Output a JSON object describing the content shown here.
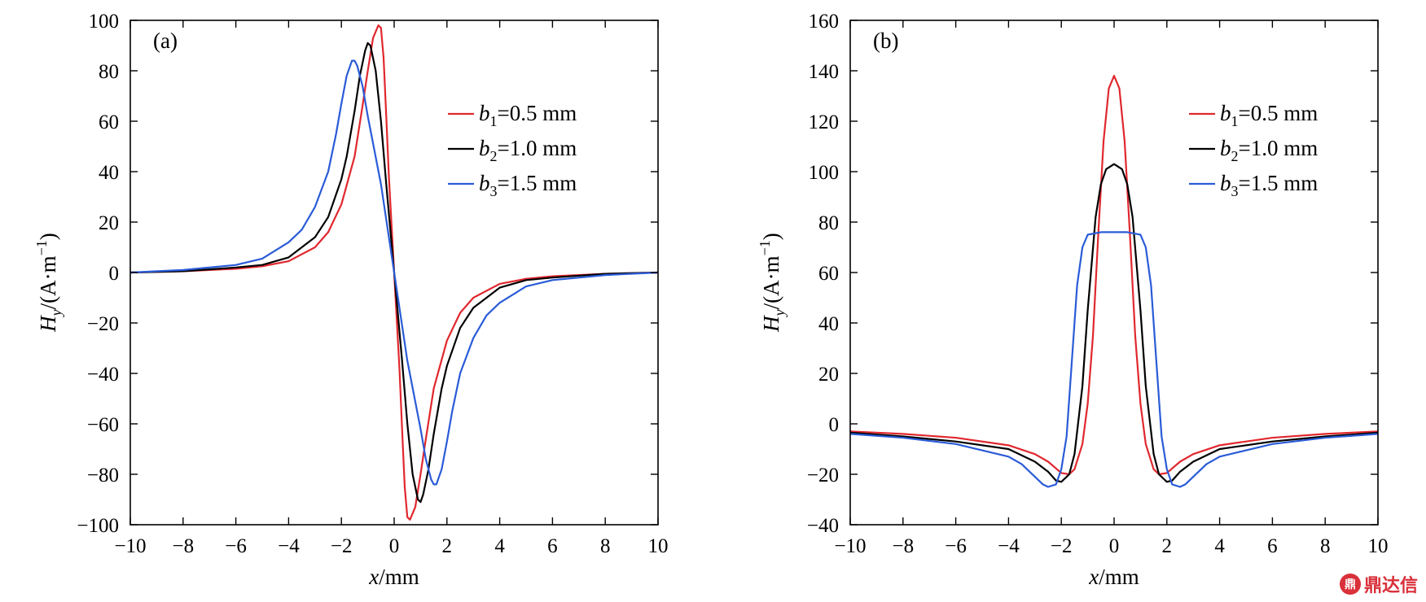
{
  "chart_data": [
    {
      "type": "line",
      "panel_label": "(a)",
      "xlabel_var": "x",
      "xlabel_unit": "/mm",
      "ylabel_var": "H",
      "ylabel_sub": "y",
      "ylabel_unit": "/(A·m",
      "ylabel_exp": "−1",
      "ylabel_close": ")",
      "xlim": [
        -10,
        10
      ],
      "ylim": [
        -100,
        100
      ],
      "xticks": [
        "−10",
        "−8",
        "−6",
        "−4",
        "−2",
        "0",
        "2",
        "4",
        "6",
        "8",
        "10"
      ],
      "yticks": [
        "100",
        "80",
        "60",
        "40",
        "20",
        "0",
        "−20",
        "−40",
        "−60",
        "−80",
        "−100"
      ],
      "legend": "top-right",
      "series": [
        {
          "legend_var": "b",
          "legend_sub": "1",
          "legend_val": "=0.5 mm",
          "color": "#e0282e",
          "x": [
            -10,
            -8,
            -6,
            -5,
            -4,
            -3,
            -2.5,
            -2,
            -1.5,
            -1.2,
            -1,
            -0.8,
            -0.6,
            -0.5,
            -0.4,
            -0.3,
            -0.2,
            0,
            0.2,
            0.3,
            0.4,
            0.5,
            0.6,
            0.8,
            1,
            1.2,
            1.5,
            2,
            2.5,
            3,
            4,
            5,
            6,
            8,
            10
          ],
          "y": [
            0,
            0.5,
            1.5,
            2.5,
            4.5,
            10,
            16,
            27,
            46,
            66,
            80,
            93,
            98,
            97,
            85,
            62,
            38,
            0,
            -38,
            -62,
            -85,
            -97,
            -98,
            -93,
            -80,
            -66,
            -46,
            -27,
            -16,
            -10,
            -4.5,
            -2.5,
            -1.5,
            -0.5,
            0
          ]
        },
        {
          "legend_var": "b",
          "legend_sub": "2",
          "legend_val": "=1.0 mm",
          "color": "#000000",
          "x": [
            -10,
            -8,
            -6,
            -5,
            -4,
            -3,
            -2.5,
            -2,
            -1.8,
            -1.5,
            -1.3,
            -1.1,
            -1,
            -0.9,
            -0.7,
            -0.5,
            -0.3,
            0,
            0.3,
            0.5,
            0.7,
            0.9,
            1,
            1.1,
            1.3,
            1.5,
            1.8,
            2,
            2.5,
            3,
            4,
            5,
            6,
            8,
            10
          ],
          "y": [
            0,
            0.5,
            2,
            3,
            6,
            14,
            22,
            37,
            46,
            64,
            78,
            88,
            91,
            90,
            80,
            60,
            35,
            0,
            -35,
            -60,
            -80,
            -90,
            -91,
            -88,
            -78,
            -64,
            -46,
            -37,
            -22,
            -14,
            -6,
            -3,
            -2,
            -0.5,
            0
          ]
        },
        {
          "legend_var": "b",
          "legend_sub": "3",
          "legend_val": "=1.5 mm",
          "color": "#2a5bd7",
          "x": [
            -10,
            -8,
            -6,
            -5,
            -4,
            -3.5,
            -3,
            -2.5,
            -2.2,
            -2,
            -1.8,
            -1.6,
            -1.5,
            -1.4,
            -1.2,
            -1,
            -0.5,
            0,
            0.5,
            1,
            1.2,
            1.4,
            1.5,
            1.6,
            1.8,
            2,
            2.2,
            2.5,
            3,
            3.5,
            4,
            5,
            6,
            8,
            10
          ],
          "y": [
            0,
            1,
            3,
            5.5,
            12,
            17,
            26,
            40,
            55,
            67,
            78,
            84,
            84,
            82,
            74,
            62,
            35,
            0,
            -35,
            -62,
            -74,
            -82,
            -84,
            -84,
            -78,
            -67,
            -55,
            -40,
            -26,
            -17,
            -12,
            -5.5,
            -3,
            -1,
            0
          ]
        }
      ]
    },
    {
      "type": "line",
      "panel_label": "(b)",
      "xlabel_var": "x",
      "xlabel_unit": "/mm",
      "ylabel_var": "H",
      "ylabel_sub": "y",
      "ylabel_unit": "/(A·m",
      "ylabel_exp": "−1",
      "ylabel_close": ")",
      "xlim": [
        -10,
        10
      ],
      "ylim": [
        -40,
        160
      ],
      "xticks": [
        "−10",
        "−8",
        "−6",
        "−4",
        "−2",
        "0",
        "2",
        "4",
        "6",
        "8",
        "10"
      ],
      "yticks": [
        "160",
        "140",
        "120",
        "100",
        "80",
        "60",
        "40",
        "20",
        "0",
        "−20",
        "−40"
      ],
      "legend": "top-right",
      "series": [
        {
          "legend_var": "b",
          "legend_sub": "1",
          "legend_val": "=0.5 mm",
          "color": "#e0282e",
          "x": [
            -10,
            -8,
            -6,
            -4,
            -3,
            -2.5,
            -2,
            -1.7,
            -1.5,
            -1.2,
            -1,
            -0.8,
            -0.6,
            -0.4,
            -0.2,
            0,
            0.2,
            0.4,
            0.6,
            0.8,
            1,
            1.2,
            1.5,
            1.7,
            2,
            2.5,
            3,
            4,
            6,
            8,
            10
          ],
          "y": [
            -3,
            -4,
            -5.5,
            -8.5,
            -12,
            -15,
            -19.5,
            -20,
            -18,
            -8,
            8,
            35,
            75,
            112,
            133,
            138,
            133,
            112,
            75,
            35,
            8,
            -8,
            -18,
            -20,
            -19.5,
            -15,
            -12,
            -8.5,
            -5.5,
            -4,
            -3
          ]
        },
        {
          "legend_var": "b",
          "legend_sub": "2",
          "legend_val": "=1.0 mm",
          "color": "#000000",
          "x": [
            -10,
            -8,
            -6,
            -4,
            -3,
            -2.5,
            -2.2,
            -2,
            -1.7,
            -1.5,
            -1.2,
            -1,
            -0.7,
            -0.5,
            -0.3,
            0,
            0.3,
            0.5,
            0.7,
            1,
            1.2,
            1.5,
            1.7,
            2,
            2.2,
            2.5,
            3,
            4,
            6,
            8,
            10
          ],
          "y": [
            -3.5,
            -5,
            -7,
            -10,
            -15,
            -19,
            -22.5,
            -23,
            -20,
            -12,
            15,
            45,
            82,
            95,
            101,
            103,
            101,
            95,
            82,
            45,
            15,
            -12,
            -20,
            -23,
            -22.5,
            -19,
            -15,
            -10,
            -7,
            -5,
            -3.5
          ]
        },
        {
          "legend_var": "b",
          "legend_sub": "3",
          "legend_val": "=1.5 mm",
          "color": "#2a5bd7",
          "x": [
            -10,
            -8,
            -6,
            -4,
            -3.5,
            -3,
            -2.7,
            -2.5,
            -2.2,
            -2,
            -1.8,
            -1.6,
            -1.4,
            -1.2,
            -1,
            -0.5,
            0,
            0.5,
            1,
            1.2,
            1.4,
            1.6,
            1.8,
            2,
            2.2,
            2.5,
            2.7,
            3,
            3.5,
            4,
            6,
            8,
            10
          ],
          "y": [
            -4,
            -5.5,
            -8,
            -13,
            -16,
            -21,
            -24,
            -25,
            -24,
            -18,
            -5,
            25,
            55,
            70,
            75,
            76,
            76,
            76,
            75,
            70,
            55,
            25,
            -5,
            -18,
            -24,
            -25,
            -24,
            -21,
            -16,
            -13,
            -8,
            -5.5,
            -4
          ]
        }
      ]
    }
  ],
  "watermark": {
    "logo_text": "鼎",
    "text": "鼎达信"
  }
}
